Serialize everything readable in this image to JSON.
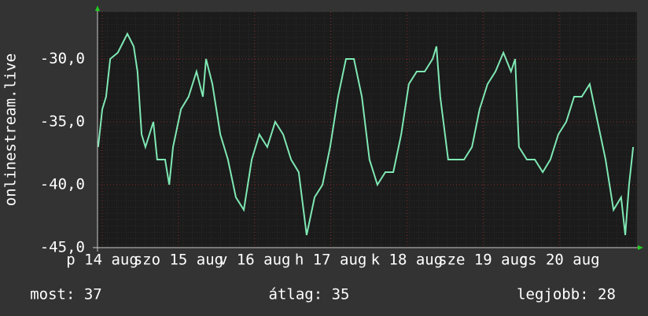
{
  "chart_data": {
    "type": "line",
    "y_label": "onlinestream.live",
    "x": [
      0.2,
      1.5,
      2.7,
      4.0,
      6.4,
      9.4,
      11.4,
      12.6,
      13.9,
      15.1,
      17.6,
      18.8,
      21.3,
      22.6,
      23.8,
      26.3,
      28.7,
      31.2,
      33.2,
      34.2,
      36.2,
      38.7,
      41.1,
      43.6,
      46.1,
      48.6,
      51.0,
      53.5,
      56.0,
      58.5,
      61.0,
      63.4,
      65.9,
      68.4,
      70.9,
      73.3,
      75.8,
      78.3,
      80.8,
      83.3,
      85.7,
      88.2,
      90.7,
      93.2,
      95.7,
      98.1,
      100.6,
      103.1,
      105.6,
      106.8,
      108.0,
      110.5,
      113.0,
      115.5,
      118.0,
      120.4,
      122.9,
      125.4,
      127.9,
      130.3,
      131.6,
      132.8,
      135.3,
      137.8,
      140.3,
      142.7,
      145.2,
      147.7,
      150.2,
      152.6,
      155.1,
      157.6,
      160.1,
      162.6,
      165.0,
      166.3,
      167.5,
      168.8
    ],
    "series": [
      {
        "name": "onlinestream.live",
        "color": "#7fe8b4",
        "values": [
          -37,
          -34,
          -33,
          -30,
          -29.5,
          -28,
          -29,
          -31,
          -36,
          -37,
          -35,
          -38,
          -38,
          -40,
          -37,
          -34,
          -33,
          -31,
          -33,
          -30,
          -32,
          -36,
          -38,
          -41,
          -42,
          -38,
          -36,
          -37,
          -35,
          -36,
          -38,
          -39,
          -44,
          -41,
          -40,
          -37,
          -33,
          -30,
          -30,
          -33,
          -38,
          -40,
          -39,
          -39,
          -36,
          -32,
          -31,
          -31,
          -30,
          -29,
          -33,
          -38,
          -38,
          -38,
          -37,
          -34,
          -32,
          -31,
          -29.5,
          -31,
          -30,
          -37,
          -38,
          -38,
          -39,
          -38,
          -36,
          -35,
          -33,
          -33,
          -32,
          -35,
          -38,
          -42,
          -41,
          -44,
          -40,
          -37
        ]
      }
    ],
    "xlim": [
      0,
      170
    ],
    "xticks": [
      {
        "value": 1.5,
        "label": "p 14 aug"
      },
      {
        "value": 25.5,
        "label": "szo 15 aug"
      },
      {
        "value": 49.5,
        "label": "v 16 aug"
      },
      {
        "value": 73.5,
        "label": "h 17 aug"
      },
      {
        "value": 97.5,
        "label": "k 18 aug"
      },
      {
        "value": 121.5,
        "label": "sze 19 aug"
      },
      {
        "value": 145.5,
        "label": "cs 20 aug"
      }
    ],
    "ylim": [
      -45,
      -26.25
    ],
    "yticks": [
      {
        "value": -45,
        "label": "-45,0"
      },
      {
        "value": -40,
        "label": "-40,0"
      },
      {
        "value": -35,
        "label": "-35,0"
      },
      {
        "value": -30,
        "label": "-30,0"
      }
    ],
    "grid": true,
    "stats": [
      "most: 37",
      "átlag: 35",
      "legjobb: 28"
    ]
  }
}
